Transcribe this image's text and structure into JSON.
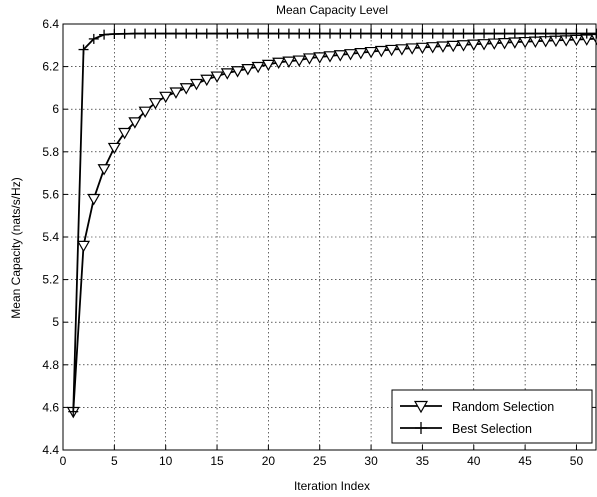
{
  "chart_data": {
    "type": "line",
    "title": "Mean Capacity Level",
    "xlabel": "Iteration Index",
    "ylabel": "Mean Capacity  (nats/s/Hz)",
    "xlim": [
      0,
      52
    ],
    "ylim": [
      4.4,
      6.4
    ],
    "xticks": [
      0,
      5,
      10,
      15,
      20,
      25,
      30,
      35,
      40,
      45,
      50
    ],
    "yticks": [
      4.4,
      4.6,
      4.8,
      5.0,
      5.2,
      5.4,
      5.6,
      5.8,
      6.0,
      6.2,
      6.4
    ],
    "ytick_labels": [
      "4.4",
      "4.6",
      "4.8",
      "5",
      "5.2",
      "5.4",
      "5.6",
      "5.8",
      "6",
      "6.2",
      "6.4"
    ],
    "grid": true,
    "legend_position": "bottom-right",
    "series": [
      {
        "name": "Random Selection",
        "marker": "triangle-down",
        "color": "#000000",
        "x": [
          1,
          2,
          3,
          4,
          5,
          6,
          7,
          8,
          9,
          10,
          11,
          12,
          13,
          14,
          15,
          16,
          17,
          18,
          19,
          20,
          21,
          22,
          23,
          24,
          25,
          26,
          27,
          28,
          29,
          30,
          31,
          32,
          33,
          34,
          35,
          36,
          37,
          38,
          39,
          40,
          41,
          42,
          43,
          44,
          45,
          46,
          47,
          48,
          49,
          50,
          51,
          52
        ],
        "y": [
          4.58,
          5.36,
          5.58,
          5.72,
          5.82,
          5.89,
          5.94,
          5.99,
          6.03,
          6.06,
          6.08,
          6.1,
          6.12,
          6.14,
          6.155,
          6.17,
          6.18,
          6.19,
          6.2,
          6.21,
          6.22,
          6.225,
          6.23,
          6.24,
          6.245,
          6.25,
          6.255,
          6.26,
          6.265,
          6.27,
          6.275,
          6.28,
          6.283,
          6.287,
          6.29,
          6.293,
          6.296,
          6.299,
          6.302,
          6.305,
          6.307,
          6.31,
          6.312,
          6.315,
          6.317,
          6.319,
          6.321,
          6.323,
          6.325,
          6.327,
          6.329,
          6.331
        ]
      },
      {
        "name": "Best Selection",
        "marker": "plus",
        "color": "#000000",
        "x": [
          1,
          2,
          3,
          4,
          5,
          6,
          7,
          8,
          9,
          10,
          11,
          12,
          13,
          14,
          15,
          16,
          17,
          18,
          19,
          20,
          21,
          22,
          23,
          24,
          25,
          26,
          27,
          28,
          29,
          30,
          31,
          32,
          33,
          34,
          35,
          36,
          37,
          38,
          39,
          40,
          41,
          42,
          43,
          44,
          45,
          46,
          47,
          48,
          49,
          50,
          51,
          52
        ],
        "y": [
          4.58,
          6.28,
          6.33,
          6.35,
          6.353,
          6.354,
          6.355,
          6.355,
          6.355,
          6.355,
          6.355,
          6.355,
          6.355,
          6.355,
          6.355,
          6.355,
          6.355,
          6.355,
          6.355,
          6.355,
          6.355,
          6.355,
          6.355,
          6.355,
          6.355,
          6.355,
          6.355,
          6.355,
          6.355,
          6.355,
          6.355,
          6.355,
          6.355,
          6.355,
          6.355,
          6.355,
          6.355,
          6.355,
          6.355,
          6.355,
          6.355,
          6.355,
          6.355,
          6.355,
          6.355,
          6.355,
          6.355,
          6.355,
          6.355,
          6.355,
          6.355,
          6.355
        ]
      }
    ]
  }
}
